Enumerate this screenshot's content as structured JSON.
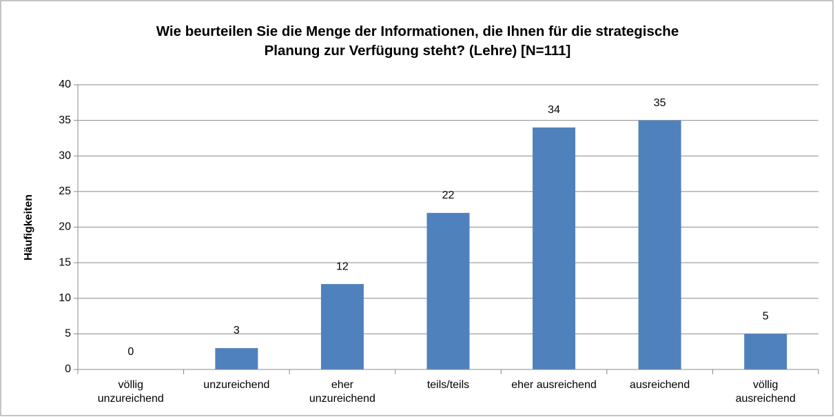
{
  "chart_data": {
    "type": "bar",
    "title": "Wie beurteilen Sie die Menge der Informationen, die Ihnen für die strategische Planung zur Verfügung steht? (Lehre) [N=111]",
    "y_label": "Häufigkeiten",
    "categories": [
      "völlig unzureichend",
      "unzureichend",
      "eher unzureichend",
      "teils/teils",
      "eher ausreichend",
      "ausreichend",
      "völlig ausreichend"
    ],
    "values": [
      0,
      3,
      12,
      22,
      34,
      35,
      5
    ],
    "color": "#4f81bd",
    "ylim": [
      0,
      40
    ],
    "yticks": [
      0,
      5,
      10,
      15,
      20,
      25,
      30,
      35,
      40
    ],
    "grid": true
  }
}
